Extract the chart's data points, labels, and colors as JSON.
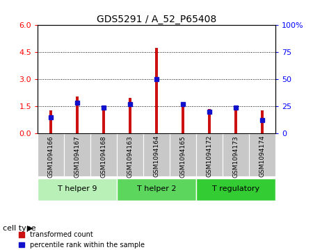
{
  "title": "GDS5291 / A_52_P65408",
  "samples": [
    "GSM1094166",
    "GSM1094167",
    "GSM1094168",
    "GSM1094163",
    "GSM1094164",
    "GSM1094165",
    "GSM1094172",
    "GSM1094173",
    "GSM1094174"
  ],
  "transformed_counts": [
    1.25,
    2.05,
    1.55,
    1.95,
    4.75,
    1.65,
    1.35,
    1.5,
    1.25
  ],
  "percentile_ranks": [
    15,
    28,
    24,
    27,
    50,
    27,
    20,
    24,
    12
  ],
  "ylim_left": [
    0,
    6
  ],
  "ylim_right": [
    0,
    100
  ],
  "yticks_left": [
    0,
    1.5,
    3,
    4.5,
    6
  ],
  "yticks_right": [
    0,
    25,
    50,
    75,
    100
  ],
  "cell_type_groups": [
    {
      "label": "T helper 9",
      "indices": [
        0,
        1,
        2
      ],
      "color": "#b8f0b8"
    },
    {
      "label": "T helper 2",
      "indices": [
        3,
        4,
        5
      ],
      "color": "#5cd65c"
    },
    {
      "label": "T regulatory",
      "indices": [
        6,
        7,
        8
      ],
      "color": "#33cc33"
    }
  ],
  "bar_color_red": "#cc1111",
  "bar_color_blue": "#1111cc",
  "bar_width": 0.12,
  "sample_bg_color": "#c8c8c8",
  "legend_red": "transformed count",
  "legend_blue": "percentile rank within the sample",
  "cell_type_label": "cell type"
}
